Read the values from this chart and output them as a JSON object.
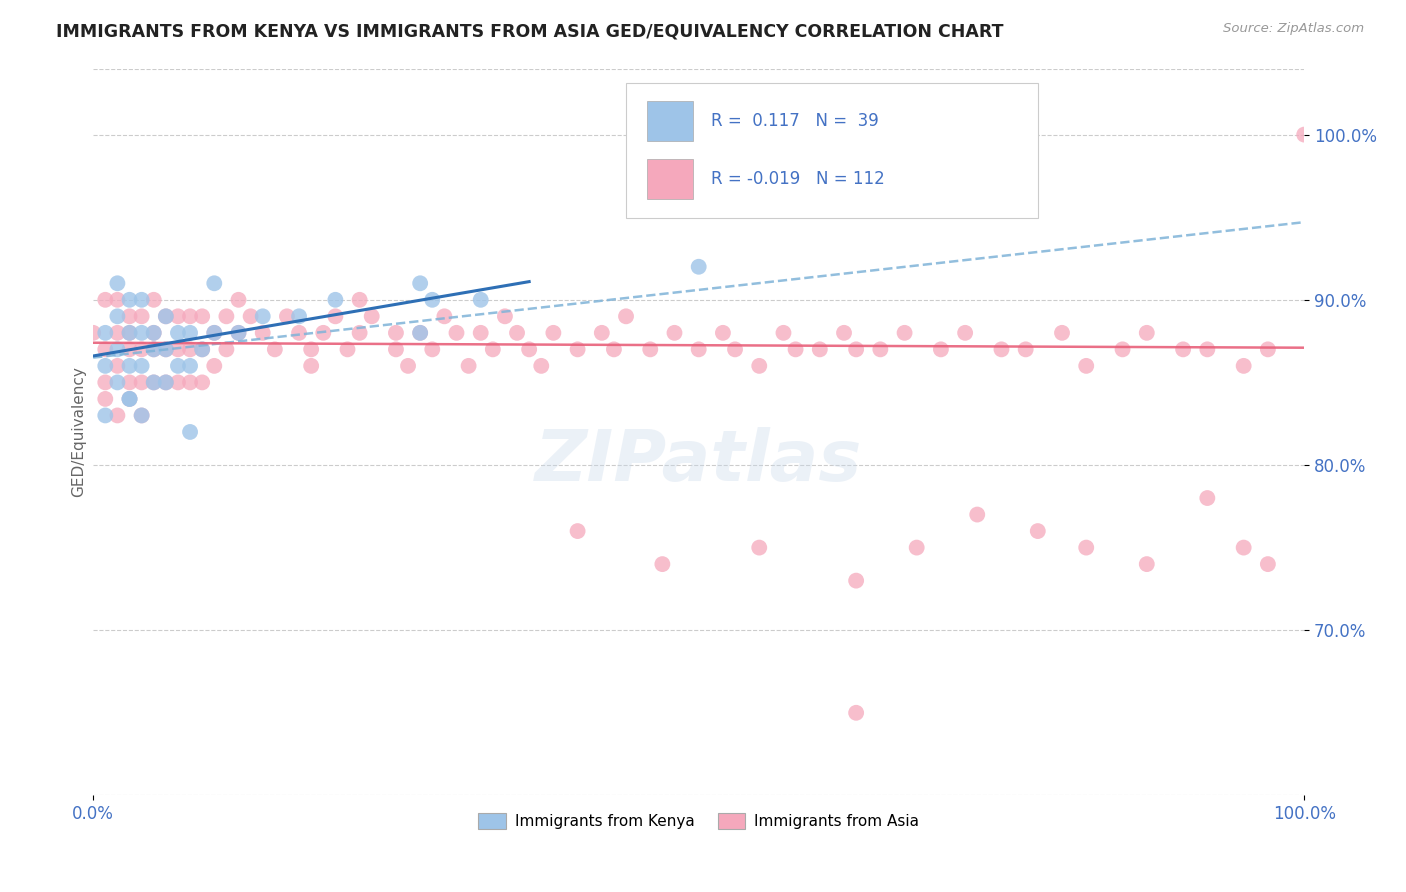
{
  "title": "IMMIGRANTS FROM KENYA VS IMMIGRANTS FROM ASIA GED/EQUIVALENCY CORRELATION CHART",
  "source": "Source: ZipAtlas.com",
  "ylabel": "GED/Equivalency",
  "xlim": [
    0.0,
    1.0
  ],
  "ylim": [
    0.6,
    1.04
  ],
  "ytick_vals": [
    0.7,
    0.8,
    0.9,
    1.0
  ],
  "ytick_labels": [
    "70.0%",
    "80.0%",
    "90.0%",
    "100.0%"
  ],
  "xtick_vals": [
    0.0,
    1.0
  ],
  "xtick_labels": [
    "0.0%",
    "100.0%"
  ],
  "legend_r_kenya": "0.117",
  "legend_n_kenya": "39",
  "legend_r_asia": "-0.019",
  "legend_n_asia": "112",
  "color_kenya": "#9ec4e8",
  "color_asia": "#f5a8bc",
  "text_color": "#4472c4",
  "background_color": "#ffffff",
  "watermark": "ZIPatlas",
  "kenya_x": [
    0.01,
    0.01,
    0.01,
    0.02,
    0.02,
    0.02,
    0.02,
    0.03,
    0.03,
    0.03,
    0.03,
    0.03,
    0.04,
    0.04,
    0.04,
    0.04,
    0.05,
    0.05,
    0.05,
    0.06,
    0.06,
    0.06,
    0.07,
    0.07,
    0.08,
    0.08,
    0.09,
    0.1,
    0.1,
    0.12,
    0.14,
    0.17,
    0.2,
    0.27,
    0.27,
    0.28,
    0.32,
    0.5,
    0.08
  ],
  "kenya_y": [
    0.86,
    0.88,
    0.83,
    0.85,
    0.87,
    0.89,
    0.91,
    0.84,
    0.86,
    0.88,
    0.9,
    0.84,
    0.86,
    0.88,
    0.9,
    0.83,
    0.85,
    0.87,
    0.88,
    0.85,
    0.87,
    0.89,
    0.86,
    0.88,
    0.86,
    0.88,
    0.87,
    0.88,
    0.91,
    0.88,
    0.89,
    0.89,
    0.9,
    0.88,
    0.91,
    0.9,
    0.9,
    0.92,
    0.82
  ],
  "asia_x": [
    0.0,
    0.01,
    0.01,
    0.01,
    0.01,
    0.02,
    0.02,
    0.02,
    0.02,
    0.03,
    0.03,
    0.03,
    0.03,
    0.03,
    0.04,
    0.04,
    0.04,
    0.04,
    0.05,
    0.05,
    0.05,
    0.05,
    0.06,
    0.06,
    0.06,
    0.07,
    0.07,
    0.07,
    0.08,
    0.08,
    0.08,
    0.09,
    0.09,
    0.09,
    0.1,
    0.1,
    0.11,
    0.11,
    0.12,
    0.12,
    0.13,
    0.14,
    0.15,
    0.16,
    0.17,
    0.18,
    0.18,
    0.19,
    0.2,
    0.21,
    0.22,
    0.22,
    0.23,
    0.25,
    0.25,
    0.26,
    0.27,
    0.28,
    0.29,
    0.3,
    0.31,
    0.32,
    0.33,
    0.34,
    0.35,
    0.36,
    0.37,
    0.38,
    0.4,
    0.42,
    0.43,
    0.44,
    0.46,
    0.48,
    0.5,
    0.52,
    0.53,
    0.55,
    0.57,
    0.58,
    0.6,
    0.62,
    0.63,
    0.65,
    0.67,
    0.7,
    0.72,
    0.75,
    0.77,
    0.8,
    0.82,
    0.85,
    0.87,
    0.9,
    0.92,
    0.95,
    0.97,
    1.0,
    0.4,
    0.47,
    0.55,
    0.63,
    0.68,
    0.73,
    0.78,
    0.82,
    0.87,
    0.92,
    0.95,
    0.97,
    0.63
  ],
  "asia_y": [
    0.88,
    0.87,
    0.9,
    0.85,
    0.84,
    0.86,
    0.88,
    0.9,
    0.83,
    0.85,
    0.87,
    0.88,
    0.89,
    0.84,
    0.85,
    0.87,
    0.89,
    0.83,
    0.85,
    0.87,
    0.88,
    0.9,
    0.85,
    0.87,
    0.89,
    0.85,
    0.87,
    0.89,
    0.85,
    0.87,
    0.89,
    0.85,
    0.87,
    0.89,
    0.86,
    0.88,
    0.87,
    0.89,
    0.88,
    0.9,
    0.89,
    0.88,
    0.87,
    0.89,
    0.88,
    0.87,
    0.86,
    0.88,
    0.89,
    0.87,
    0.88,
    0.9,
    0.89,
    0.87,
    0.88,
    0.86,
    0.88,
    0.87,
    0.89,
    0.88,
    0.86,
    0.88,
    0.87,
    0.89,
    0.88,
    0.87,
    0.86,
    0.88,
    0.87,
    0.88,
    0.87,
    0.89,
    0.87,
    0.88,
    0.87,
    0.88,
    0.87,
    0.86,
    0.88,
    0.87,
    0.87,
    0.88,
    0.87,
    0.87,
    0.88,
    0.87,
    0.88,
    0.87,
    0.87,
    0.88,
    0.86,
    0.87,
    0.88,
    0.87,
    0.87,
    0.86,
    0.87,
    1.0,
    0.76,
    0.74,
    0.75,
    0.73,
    0.75,
    0.77,
    0.76,
    0.75,
    0.74,
    0.78,
    0.75,
    0.74,
    0.65
  ]
}
